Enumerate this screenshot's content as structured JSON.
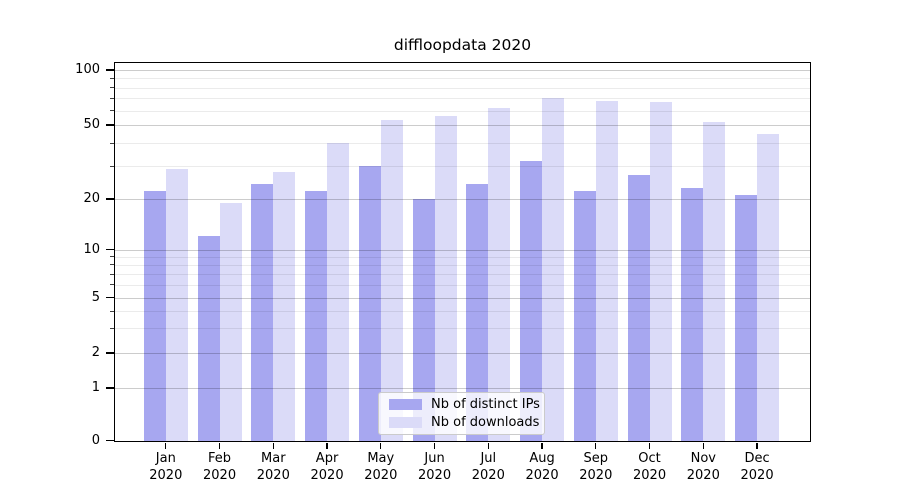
{
  "chart_data": {
    "type": "bar",
    "title": "diffloopdata 2020",
    "categories": [
      "Jan",
      "Feb",
      "Mar",
      "Apr",
      "May",
      "Jun",
      "Jul",
      "Aug",
      "Sep",
      "Oct",
      "Nov",
      "Dec"
    ],
    "category_year": "2020",
    "series": [
      {
        "name": "Nb of distinct IPs",
        "color": "#a7a7f0",
        "values": [
          22,
          12,
          24,
          22,
          30,
          20,
          24,
          32,
          22,
          27,
          23,
          21
        ]
      },
      {
        "name": "Nb of downloads",
        "color": "#dbdbf8",
        "values": [
          29,
          19,
          28,
          40,
          53,
          56,
          62,
          70,
          68,
          67,
          52,
          45
        ]
      }
    ],
    "yaxis": {
      "scale": "symlog",
      "ticks": [
        0,
        1,
        2,
        5,
        10,
        20,
        50,
        100
      ],
      "minor_ticks": [
        3,
        4,
        6,
        7,
        8,
        9,
        30,
        40,
        60,
        70,
        80,
        90
      ],
      "range": [
        0,
        110
      ]
    },
    "legend": {
      "position": "lower center"
    },
    "grid": true
  }
}
